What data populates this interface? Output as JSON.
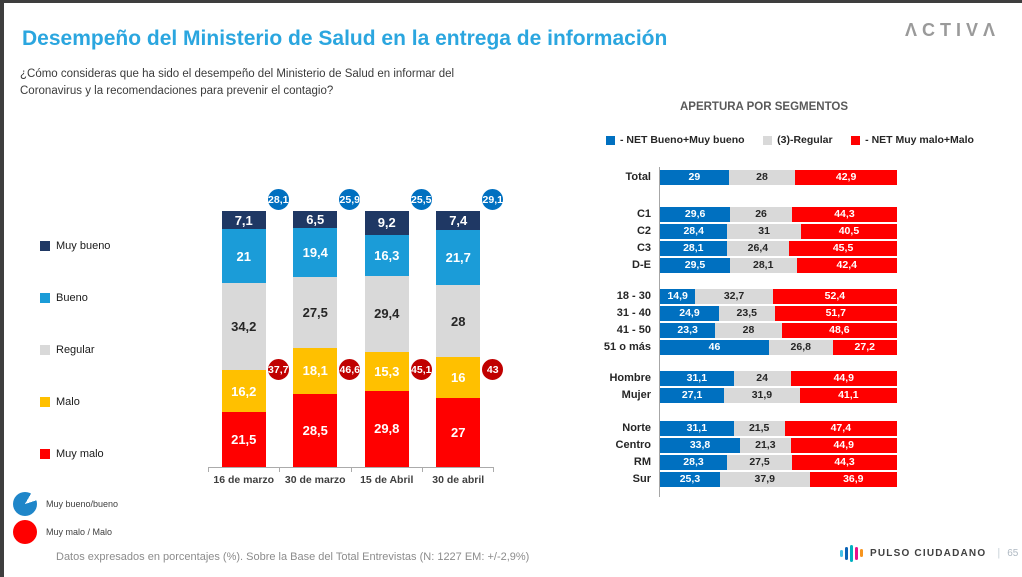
{
  "slide": {
    "title": "Desempeño del Ministerio de Salud en la entrega de información",
    "subtitle_line1": "¿Cómo consideras que ha sido el desempeño del Ministerio de Salud en informar del",
    "subtitle_line2": "Coronavirus y la recomendaciones para prevenir el contagio?",
    "brand_logo": "ΛCTIVΛ",
    "footer_note": "Datos expresados en porcentajes (%). Sobre la Base del Total Entrevistas (N: 1227  EM: +/-2,9%)",
    "footer_brand": "PULSO CIUDADANO",
    "page_separator": "|",
    "page_number": "65",
    "title_color": "#2BA6DF",
    "pulso_icon_colors": [
      "#45C1E8",
      "#0B64B6",
      "#00B1C1",
      "#E6138C",
      "#F7941D"
    ]
  },
  "chart_data": [
    {
      "type": "bar",
      "variant": "stacked-column-100",
      "title": "",
      "xlabel": "",
      "ylabel": "",
      "ylim": [
        0,
        100
      ],
      "grid": false,
      "legend_position": "left",
      "categories": [
        "16 de marzo",
        "30 de marzo",
        "15 de Abril",
        "30 de abril"
      ],
      "series": [
        {
          "name": "Muy bueno",
          "color": "#1F3864",
          "label_color": "#FFFFFF",
          "values": [
            7.1,
            6.5,
            9.2,
            7.4
          ]
        },
        {
          "name": "Bueno",
          "color": "#1B9CD8",
          "label_color": "#FFFFFF",
          "values": [
            21,
            19.4,
            16.3,
            21.7
          ]
        },
        {
          "name": "Regular",
          "color": "#D9D9D9",
          "label_color": "#262626",
          "values": [
            34.2,
            27.5,
            29.4,
            28
          ]
        },
        {
          "name": "Malo",
          "color": "#FFC000",
          "label_color": "#FFFFFF",
          "values": [
            16.2,
            18.1,
            15.3,
            16
          ]
        },
        {
          "name": "Muy malo",
          "color": "#FF0000",
          "label_color": "#FFFFFF",
          "values": [
            21.5,
            28.5,
            29.8,
            27
          ]
        }
      ],
      "net_positive": {
        "label": "Muy bueno/bueno",
        "color": "#0070C0",
        "legend_color": "#1F86C9",
        "values": [
          28.1,
          25.9,
          25.5,
          29.1
        ]
      },
      "net_negative": {
        "label": "Muy malo / Malo",
        "color": "#C00000",
        "legend_color": "#FF0000",
        "values": [
          37.7,
          46.6,
          45.1,
          43
        ]
      }
    },
    {
      "type": "bar",
      "variant": "horizontal-stacked-100",
      "title": "APERTURA POR SEGMENTOS",
      "grid": false,
      "legend_position": "top",
      "legend": [
        {
          "label": "- NET Bueno+Muy bueno",
          "color": "#0070C0",
          "label_color": "#FFFFFF"
        },
        {
          "label": "(3)-Regular",
          "color": "#D9D9D9",
          "label_color": "#262626"
        },
        {
          "label": "- NET Muy malo+Malo",
          "color": "#FF0000",
          "label_color": "#FFFFFF"
        }
      ],
      "groups": [
        {
          "rows": [
            {
              "label": "Total",
              "values": [
                29,
                28,
                42.9
              ]
            }
          ]
        },
        {
          "rows": [
            {
              "label": "C1",
              "values": [
                29.6,
                26,
                44.3
              ]
            },
            {
              "label": "C2",
              "values": [
                28.4,
                31,
                40.5
              ]
            },
            {
              "label": "C3",
              "values": [
                28.1,
                26.4,
                45.5
              ]
            },
            {
              "label": "D-E",
              "values": [
                29.5,
                28.1,
                42.4
              ]
            }
          ]
        },
        {
          "rows": [
            {
              "label": "18 - 30",
              "values": [
                14.9,
                32.7,
                52.4
              ]
            },
            {
              "label": "31 - 40",
              "values": [
                24.9,
                23.5,
                51.7
              ]
            },
            {
              "label": "41 - 50",
              "values": [
                23.3,
                28,
                48.6
              ]
            },
            {
              "label": "51 o más",
              "values": [
                46,
                26.8,
                27.2
              ]
            }
          ]
        },
        {
          "rows": [
            {
              "label": "Hombre",
              "values": [
                31.1,
                24,
                44.9
              ]
            },
            {
              "label": "Mujer",
              "values": [
                27.1,
                31.9,
                41.1
              ]
            }
          ]
        },
        {
          "rows": [
            {
              "label": "Norte",
              "values": [
                31.1,
                21.5,
                47.4
              ]
            },
            {
              "label": "Centro",
              "values": [
                33.8,
                21.3,
                44.9
              ]
            },
            {
              "label": "RM",
              "values": [
                28.3,
                27.5,
                44.3
              ]
            },
            {
              "label": "Sur",
              "values": [
                25.3,
                37.9,
                36.9
              ]
            }
          ]
        }
      ]
    }
  ]
}
